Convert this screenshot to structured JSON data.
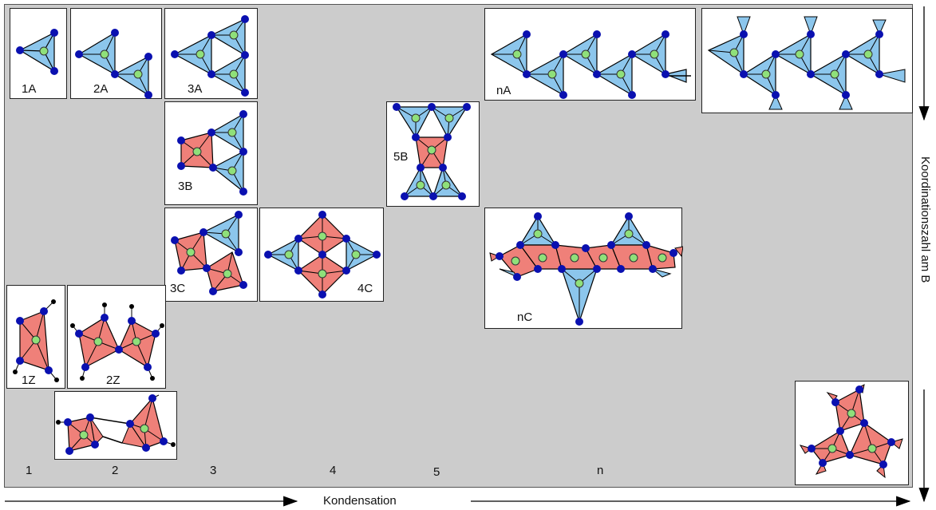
{
  "colors": {
    "tetrahedron": "#8cc6ec",
    "triangle_red": "#ef8079",
    "oxygen": "#0a10b0",
    "boron": "#8fe07a",
    "panel": "#cccccc"
  },
  "axes": {
    "x_label": "Kondensation",
    "y_label": "Koordinationszahl am B"
  },
  "columns": [
    "1",
    "2",
    "3",
    "4",
    "5",
    "n"
  ],
  "structures": {
    "s1A": "1A",
    "s2A": "2A",
    "s3A": "3A",
    "snA": "nA",
    "s3B": "3B",
    "s5B": "5B",
    "s3C": "3C",
    "s4C": "4C",
    "snC": "nC",
    "s1Z": "1Z",
    "s2Z": "2Z"
  }
}
